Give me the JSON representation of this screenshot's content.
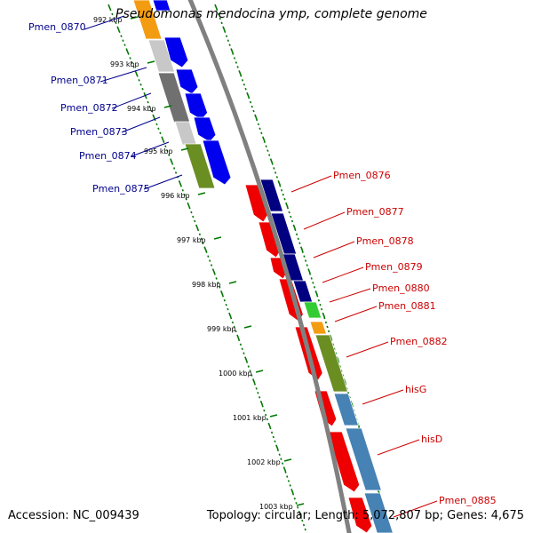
{
  "title": "Pseudomonas mendocina ymp, complete genome",
  "footer": {
    "accession": "Accession: NC_009439",
    "topology": "Topology: circular; Length: 5,072,807 bp; Genes: 4,675"
  },
  "colors": {
    "left_label": "#00008b",
    "right_label": "#cc0000",
    "backbone": "#808080",
    "ticks": "#007700"
  },
  "kbp_labels": [
    "992 kbp",
    "993 kbp",
    "994 kbp",
    "995 kbp",
    "996 kbp",
    "997 kbp",
    "998 kbp",
    "999 kbp",
    "1000 kbp",
    "1001 kbp",
    "1002 kbp",
    "1003 kbp"
  ],
  "left_genes": [
    "Pmen_0870",
    "Pmen_0871",
    "Pmen_0872",
    "Pmen_0873",
    "Pmen_0874",
    "Pmen_0875"
  ],
  "right_genes": [
    "Pmen_0876",
    "Pmen_0877",
    "Pmen_0878",
    "Pmen_0879",
    "Pmen_0880",
    "Pmen_0881",
    "Pmen_0882",
    "hisG",
    "hisD",
    "Pmen_0885"
  ]
}
